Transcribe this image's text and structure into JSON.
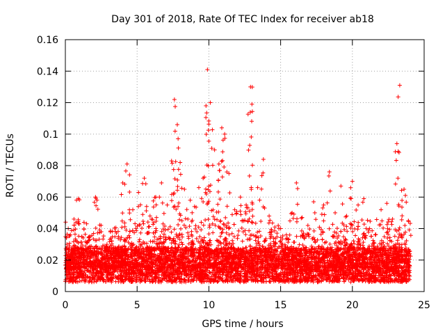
{
  "chart_data": {
    "type": "scatter",
    "title": "Day 301 of 2018, Rate Of TEC Index for receiver ab18",
    "xlabel": "GPS time / hours",
    "ylabel": "ROTI / TECUs",
    "xlim": [
      0,
      25
    ],
    "ylim": [
      0,
      0.16
    ],
    "xticks": [
      0,
      5,
      10,
      15,
      20,
      25
    ],
    "xtick_labels": [
      "0",
      "5",
      "10",
      "15",
      "20",
      "25"
    ],
    "yticks": [
      0,
      0.02,
      0.04,
      0.06,
      0.08,
      0.1,
      0.12,
      0.14,
      0.16
    ],
    "ytick_labels": [
      "0",
      "0.02",
      "0.04",
      "0.06",
      "0.08",
      "0.1",
      "0.12",
      "0.14",
      "0.16"
    ],
    "grid": true,
    "marker": "+",
    "color": "#ff0000",
    "series": [
      {
        "name": "ROTI",
        "x": [
          0.2,
          0.6,
          0.9,
          1.3,
          1.7,
          2.1,
          2.5,
          2.9,
          3.3,
          3.7,
          4.0,
          4.3,
          4.7,
          5.1,
          5.5,
          5.9,
          6.3,
          6.7,
          7.1,
          7.4,
          7.6,
          7.8,
          8.0,
          8.3,
          8.7,
          9.0,
          9.3,
          9.6,
          9.8,
          9.9,
          10.1,
          10.4,
          10.7,
          10.9,
          11.1,
          11.4,
          11.8,
          12.2,
          12.6,
          12.9,
          13.0,
          13.4,
          13.8,
          14.2,
          14.6,
          15.0,
          15.4,
          15.8,
          16.1,
          16.5,
          16.9,
          17.3,
          17.6,
          18.0,
          18.4,
          18.8,
          19.2,
          19.6,
          20.0,
          20.4,
          20.8,
          21.2,
          21.6,
          22.0,
          22.4,
          22.8,
          23.1,
          23.3,
          23.6,
          23.9
        ],
        "y": [
          0.04,
          0.046,
          0.059,
          0.044,
          0.035,
          0.06,
          0.038,
          0.03,
          0.027,
          0.035,
          0.069,
          0.081,
          0.052,
          0.063,
          0.072,
          0.048,
          0.06,
          0.069,
          0.055,
          0.083,
          0.122,
          0.106,
          0.082,
          0.065,
          0.058,
          0.054,
          0.066,
          0.072,
          0.118,
          0.141,
          0.12,
          0.09,
          0.081,
          0.104,
          0.1,
          0.075,
          0.052,
          0.06,
          0.055,
          0.13,
          0.119,
          0.066,
          0.084,
          0.048,
          0.041,
          0.04,
          0.036,
          0.05,
          0.069,
          0.047,
          0.042,
          0.057,
          0.019,
          0.055,
          0.076,
          0.05,
          0.067,
          0.048,
          0.07,
          0.055,
          0.059,
          0.04,
          0.036,
          0.052,
          0.056,
          0.046,
          0.094,
          0.131,
          0.065,
          0.045
        ]
      }
    ]
  }
}
